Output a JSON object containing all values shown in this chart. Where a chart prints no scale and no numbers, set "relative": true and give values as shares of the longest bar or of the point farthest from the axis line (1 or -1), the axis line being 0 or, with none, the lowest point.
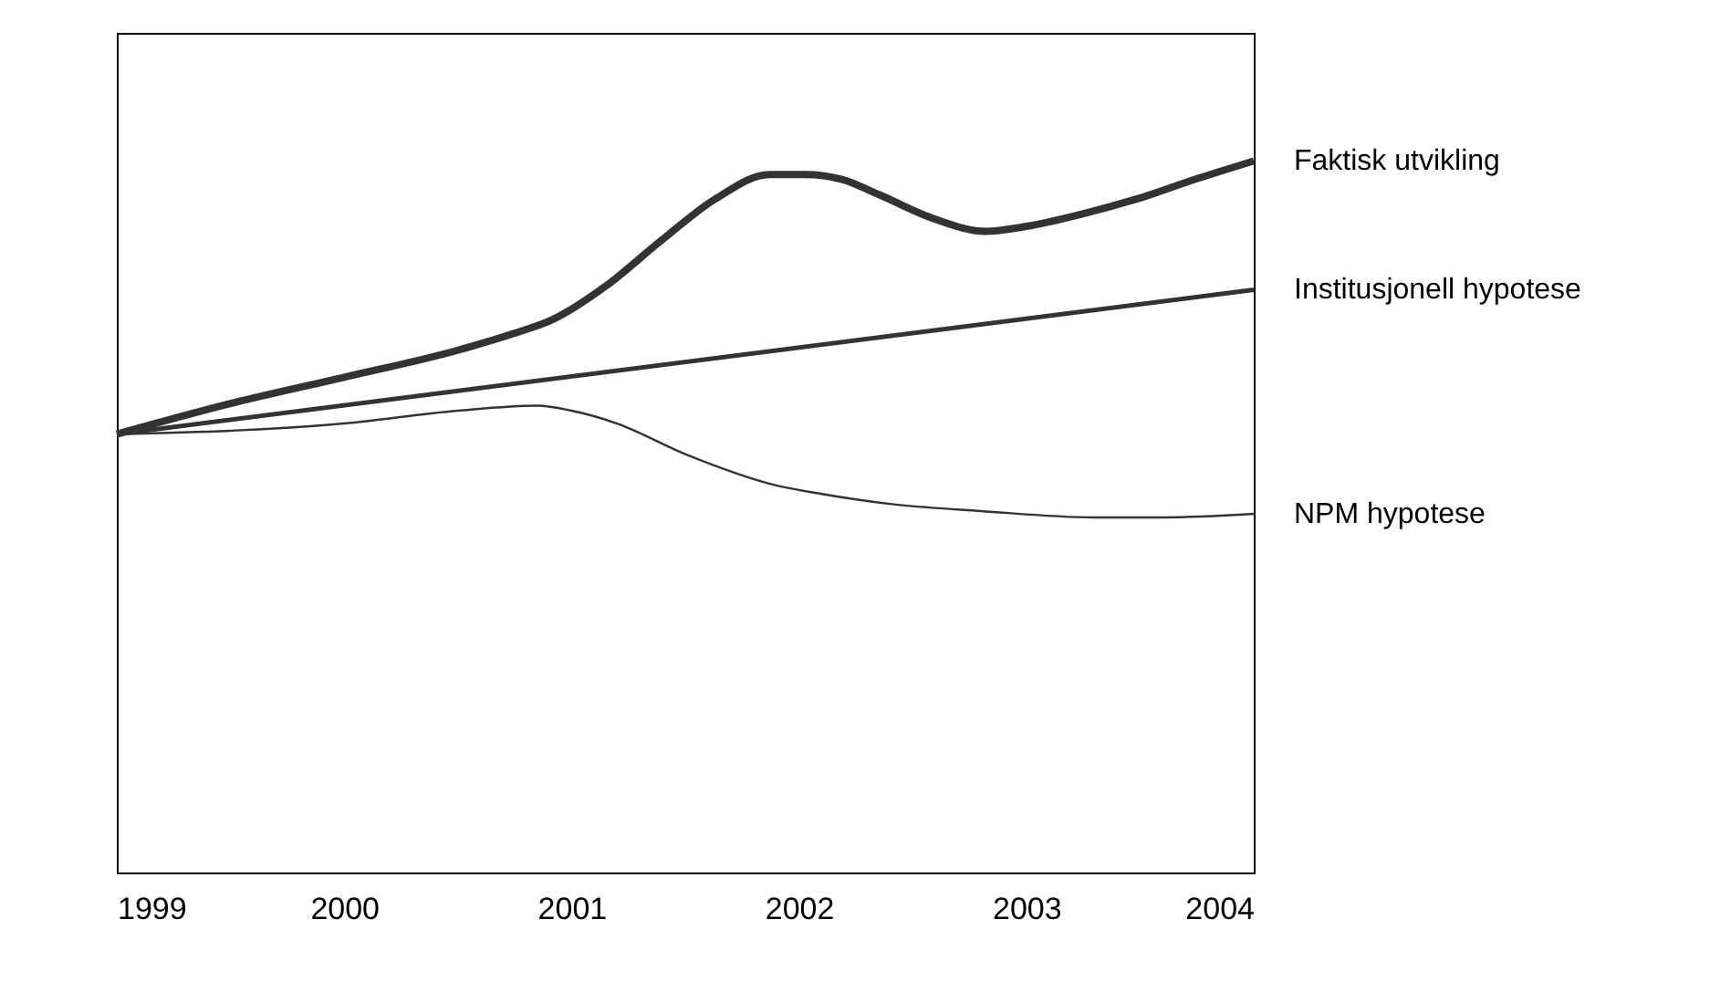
{
  "chart_data": {
    "type": "line",
    "relative": true,
    "xlim": [
      1999,
      2004
    ],
    "xticks": [
      1999,
      2000,
      2001,
      2002,
      2003,
      2004
    ],
    "grid": false,
    "series": [
      {
        "name": "Faktisk utvikling",
        "color": "#333333",
        "x": [
          1999,
          1999.5,
          2000,
          2000.5,
          2000.75,
          2000.91,
          2001.15,
          2001.39,
          2001.63,
          2001.87,
          2002.03,
          2002.19,
          2002.35,
          2002.6,
          2002.82,
          2003.0,
          2003.24,
          2003.48,
          2003.76,
          2004
        ],
        "values": [
          0.616,
          0.659,
          0.696,
          0.734,
          0.758,
          0.776,
          0.824,
          0.887,
          0.946,
          0.981,
          0.981,
          0.974,
          0.953,
          0.918,
          0.901,
          0.908,
          0.925,
          0.946,
          0.976,
          1.0
        ]
      },
      {
        "name": "Institusjonell hypotese",
        "color": "#333333",
        "x": [
          1999,
          2004
        ],
        "values": [
          0.616,
          0.819
        ]
      },
      {
        "name": "NPM hypotese",
        "color": "#333333",
        "x": [
          1999,
          2000,
          2000.5,
          2000.85,
          2001,
          2001.2,
          2001.5,
          2001.9,
          2002.1,
          2002.4,
          2002.8,
          2003.3,
          2003.6,
          2004
        ],
        "values": [
          0.616,
          0.631,
          0.649,
          0.656,
          0.649,
          0.631,
          0.588,
          0.544,
          0.532,
          0.518,
          0.508,
          0.499,
          0.499,
          0.504
        ]
      }
    ]
  }
}
